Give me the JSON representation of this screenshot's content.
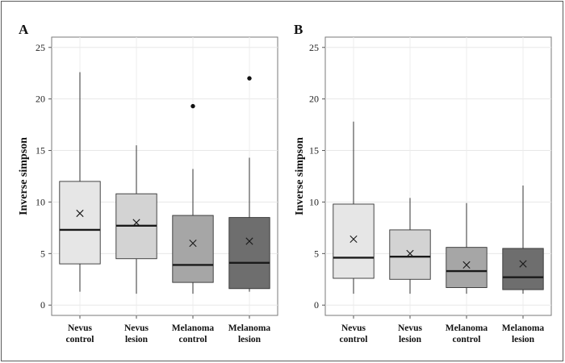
{
  "chart_data": [
    {
      "type": "boxplot",
      "panel": "A",
      "ylabel": "Inverse simpson",
      "ylim": [
        -1,
        26
      ],
      "yticks": [
        0,
        5,
        10,
        15,
        20,
        25
      ],
      "grid": true,
      "categories": [
        [
          "Nevus",
          "control"
        ],
        [
          "Nevus",
          "lesion"
        ],
        [
          "Melanoma",
          "control"
        ],
        [
          "Melanoma",
          "lesion"
        ]
      ],
      "box_colors": [
        "#e6e6e6",
        "#d3d3d3",
        "#a6a6a6",
        "#6e6e6e"
      ],
      "boxes": [
        {
          "whisker_low": 1.3,
          "q1": 4.0,
          "median": 7.3,
          "q3": 12.0,
          "whisker_high": 22.6,
          "mean": 8.9,
          "outliers": []
        },
        {
          "whisker_low": 1.1,
          "q1": 4.5,
          "median": 7.7,
          "q3": 10.8,
          "whisker_high": 15.5,
          "mean": 8.0,
          "outliers": []
        },
        {
          "whisker_low": 1.1,
          "q1": 2.2,
          "median": 3.9,
          "q3": 8.7,
          "whisker_high": 13.2,
          "mean": 6.0,
          "outliers": [
            19.3
          ]
        },
        {
          "whisker_low": 1.3,
          "q1": 1.6,
          "median": 4.1,
          "q3": 8.5,
          "whisker_high": 14.3,
          "mean": 6.2,
          "outliers": [
            22.0
          ]
        }
      ]
    },
    {
      "type": "boxplot",
      "panel": "B",
      "ylabel": "Inverse simpson",
      "ylim": [
        -1,
        26
      ],
      "yticks": [
        0,
        5,
        10,
        15,
        20,
        25
      ],
      "grid": true,
      "categories": [
        [
          "Nevus",
          "control"
        ],
        [
          "Nevus",
          "lesion"
        ],
        [
          "Melanoma",
          "control"
        ],
        [
          "Melanoma",
          "lesion"
        ]
      ],
      "box_colors": [
        "#e6e6e6",
        "#d3d3d3",
        "#a6a6a6",
        "#6e6e6e"
      ],
      "boxes": [
        {
          "whisker_low": 1.1,
          "q1": 2.6,
          "median": 4.6,
          "q3": 9.8,
          "whisker_high": 17.8,
          "mean": 6.4,
          "outliers": []
        },
        {
          "whisker_low": 1.1,
          "q1": 2.5,
          "median": 4.7,
          "q3": 7.3,
          "whisker_high": 10.4,
          "mean": 5.0,
          "outliers": []
        },
        {
          "whisker_low": 1.1,
          "q1": 1.7,
          "median": 3.3,
          "q3": 5.6,
          "whisker_high": 9.9,
          "mean": 3.9,
          "outliers": []
        },
        {
          "whisker_low": 1.1,
          "q1": 1.5,
          "median": 2.7,
          "q3": 5.5,
          "whisker_high": 11.6,
          "mean": 4.0,
          "outliers": []
        }
      ]
    }
  ]
}
